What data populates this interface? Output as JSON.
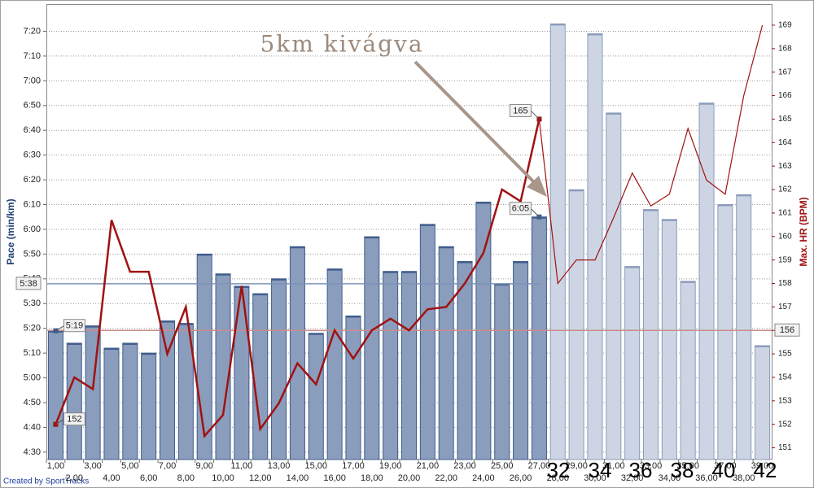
{
  "chart_data": {
    "type": "bar",
    "y_label": "Pace (min/km)",
    "y2_label": "Max. HR (BPM)",
    "categories": [
      "1,00",
      "2,00",
      "3,00",
      "4,00",
      "5,00",
      "6,00",
      "7,00",
      "8,00",
      "9,00",
      "10,00",
      "11,00",
      "12,00",
      "13,00",
      "14,00",
      "15,00",
      "16,00",
      "17,00",
      "18,00",
      "19,00",
      "20,00",
      "21,00",
      "22,00",
      "23,00",
      "24,00",
      "25,00",
      "26,00",
      "27,00",
      "28,00",
      "29,00",
      "30,00",
      "31,00",
      "32,00",
      "33,00",
      "34,00",
      "35,00",
      "36,00",
      "37,00",
      "38,00",
      "39,00"
    ],
    "values": [
      319,
      314,
      321,
      312,
      314,
      310,
      323,
      322,
      350,
      342,
      337,
      334,
      340,
      353,
      318,
      344,
      325,
      357,
      343,
      343,
      362,
      353,
      347,
      371,
      338,
      347,
      365,
      443,
      376,
      439,
      407,
      345,
      368,
      364,
      339,
      411,
      370,
      374,
      313
    ],
    "value_labels": [
      "5:19",
      null,
      null,
      null,
      null,
      null,
      null,
      null,
      null,
      null,
      null,
      null,
      null,
      null,
      null,
      null,
      null,
      null,
      null,
      null,
      null,
      null,
      null,
      null,
      null,
      null,
      "6:05",
      null,
      null,
      null,
      null,
      null,
      null,
      null,
      null,
      null,
      null,
      null,
      null
    ],
    "colors": [
      "#8b9dbc",
      "#8b9dbc",
      "#8b9dbc",
      "#8b9dbc",
      "#8b9dbc",
      "#8b9dbc",
      "#8b9dbc",
      "#8b9dbc",
      "#8b9dbc",
      "#8b9dbc",
      "#8b9dbc",
      "#8b9dbc",
      "#8b9dbc",
      "#8b9dbc",
      "#8b9dbc",
      "#8b9dbc",
      "#8b9dbc",
      "#8b9dbc",
      "#8b9dbc",
      "#8b9dbc",
      "#8b9dbc",
      "#8b9dbc",
      "#8b9dbc",
      "#8b9dbc",
      "#8b9dbc",
      "#8b9dbc",
      "#8b9dbc",
      "#cdd5e4",
      "#cdd5e4",
      "#cdd5e4",
      "#cdd5e4",
      "#cdd5e4",
      "#cdd5e4",
      "#cdd5e4",
      "#cdd5e4",
      "#cdd5e4",
      "#cdd5e4",
      "#cdd5e4",
      "#cdd5e4"
    ],
    "line": {
      "axis": "y2",
      "color": "#a01212",
      "values": [
        152,
        154,
        153.5,
        160.7,
        158.5,
        158.5,
        155,
        157,
        151.5,
        152.4,
        157.9,
        151.8,
        152.9,
        154.6,
        153.7,
        156,
        154.8,
        156,
        156.5,
        156,
        156.9,
        157,
        158,
        159.3,
        162,
        161.5,
        165,
        158,
        159,
        159,
        160.8,
        162.7,
        161.3,
        161.8,
        164.6,
        162.4,
        161.8,
        166,
        169
      ],
      "value_labels": [
        "152",
        null,
        null,
        null,
        null,
        null,
        null,
        null,
        null,
        null,
        null,
        null,
        null,
        null,
        null,
        null,
        null,
        null,
        null,
        null,
        null,
        null,
        null,
        null,
        null,
        null,
        "165",
        null,
        null,
        null,
        null,
        null,
        null,
        null,
        null,
        null,
        null,
        null,
        null
      ]
    },
    "ylim": [
      267,
      451
    ],
    "yticks": [
      {
        "value": 270,
        "label": "4:30"
      },
      {
        "value": 280,
        "label": "4:40"
      },
      {
        "value": 290,
        "label": "4:50"
      },
      {
        "value": 300,
        "label": "5:00"
      },
      {
        "value": 310,
        "label": "5:10"
      },
      {
        "value": 320,
        "label": "5:20"
      },
      {
        "value": 330,
        "label": "5:30"
      },
      {
        "value": 340,
        "label": "5:40"
      },
      {
        "value": 350,
        "label": "5:50"
      },
      {
        "value": 360,
        "label": "6:00"
      },
      {
        "value": 370,
        "label": "6:10"
      },
      {
        "value": 380,
        "label": "6:20"
      },
      {
        "value": 390,
        "label": "6:30"
      },
      {
        "value": 400,
        "label": "6:40"
      },
      {
        "value": 410,
        "label": "6:50"
      },
      {
        "value": 420,
        "label": "7:00"
      },
      {
        "value": 430,
        "label": "7:10"
      },
      {
        "value": 440,
        "label": "7:20"
      }
    ],
    "y2lim": [
      150.5,
      169.9
    ],
    "y2ticks": [
      151,
      152,
      153,
      154,
      155,
      156,
      157,
      158,
      159,
      160,
      161,
      162,
      163,
      164,
      165,
      166,
      167,
      168,
      169
    ],
    "grid": true,
    "ref_lines": [
      {
        "axis": "y",
        "value": 338,
        "label": "5:38",
        "color": "#7b93b8"
      },
      {
        "axis": "y2",
        "value": 156,
        "label": "156",
        "color": "#c98b8b"
      }
    ],
    "annotation": "5km kivágva",
    "big_labels": [
      "32",
      "34",
      "36",
      "38",
      "40",
      "42"
    ],
    "footer": "Created by SportTracks"
  }
}
